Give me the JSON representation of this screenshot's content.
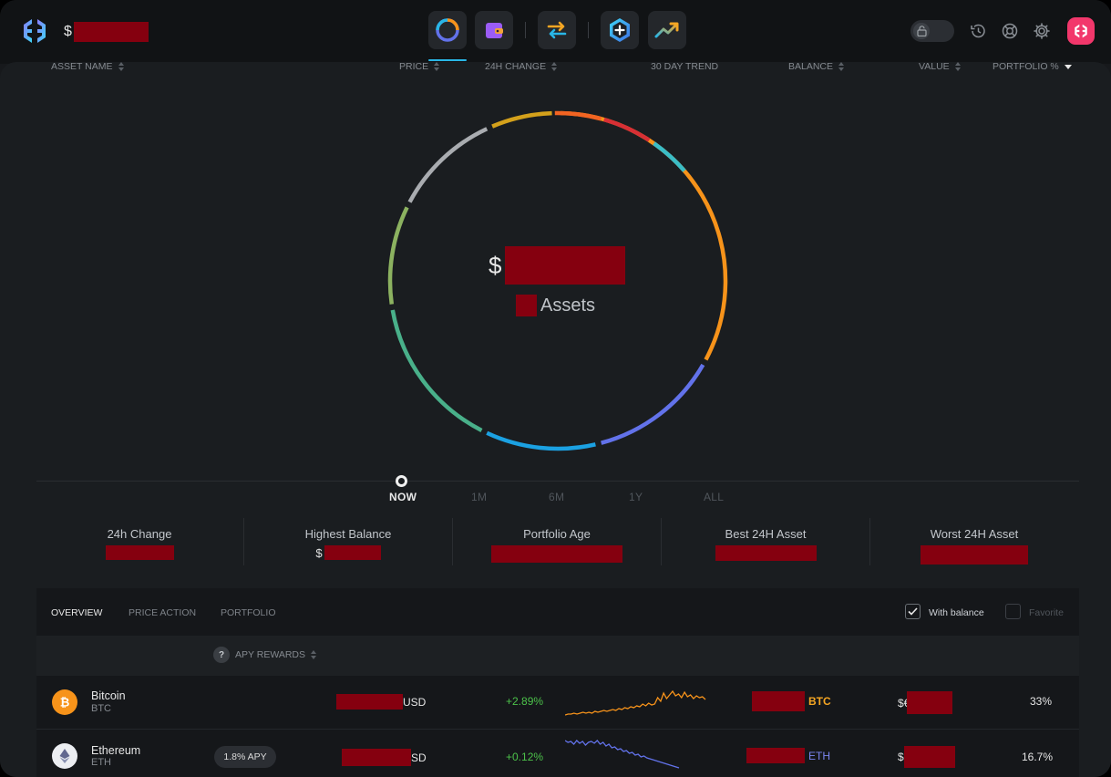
{
  "header": {
    "balance_prefix": "$",
    "nav": [
      {
        "name": "portfolio"
      },
      {
        "name": "wallet"
      },
      {
        "name": "exchange"
      },
      {
        "name": "apps"
      },
      {
        "name": "trending"
      }
    ]
  },
  "donut": {
    "currency": "$",
    "assets_label": "Assets",
    "colors": [
      "#f7931a",
      "#6272ea",
      "#1ba1e2",
      "#49b08a",
      "#8cb260",
      "#a9acb0",
      "#d4a11b",
      "#f26422",
      "#d72f35",
      "#3bbdc6"
    ]
  },
  "timeline": {
    "ranges": [
      "NOW",
      "1M",
      "6M",
      "1Y",
      "ALL"
    ],
    "active": "NOW"
  },
  "stats": [
    {
      "label": "24h Change",
      "prefix": ""
    },
    {
      "label": "Highest Balance",
      "prefix": "$"
    },
    {
      "label": "Portfolio Age",
      "prefix": ""
    },
    {
      "label": "Best 24H Asset",
      "prefix": ""
    },
    {
      "label": "Worst 24H Asset",
      "prefix": ""
    }
  ],
  "table": {
    "tabs": [
      "OVERVIEW",
      "PRICE ACTION",
      "PORTFOLIO"
    ],
    "active_tab": "OVERVIEW",
    "with_balance_label": "With balance",
    "favorite_label": "Favorite",
    "with_balance_checked": true,
    "favorite_checked": false,
    "headers": {
      "asset_name": "ASSET NAME",
      "apy_help": "?",
      "apy_rewards": "APY REWARDS",
      "price": "PRICE",
      "change": "24H CHANGE",
      "trend": "30 DAY TREND",
      "balance": "BALANCE",
      "value": "VALUE",
      "portfolio": "PORTFOLIO %"
    },
    "rows": [
      {
        "name": "Bitcoin",
        "symbol": "BTC",
        "apy": "",
        "price_suffix": "USD",
        "change": "+2.89%",
        "balance_unit": "BTC",
        "value_prefix": "$€",
        "portfolio": "33%",
        "trend_color": "#f7931a"
      },
      {
        "name": "Ethereum",
        "symbol": "ETH",
        "apy": "1.8% APY",
        "price_suffix": "SD",
        "change": "+0.12%",
        "balance_unit": "ETH",
        "value_prefix": "$",
        "portfolio": "16.7%",
        "trend_color": "#6272ea"
      }
    ]
  }
}
